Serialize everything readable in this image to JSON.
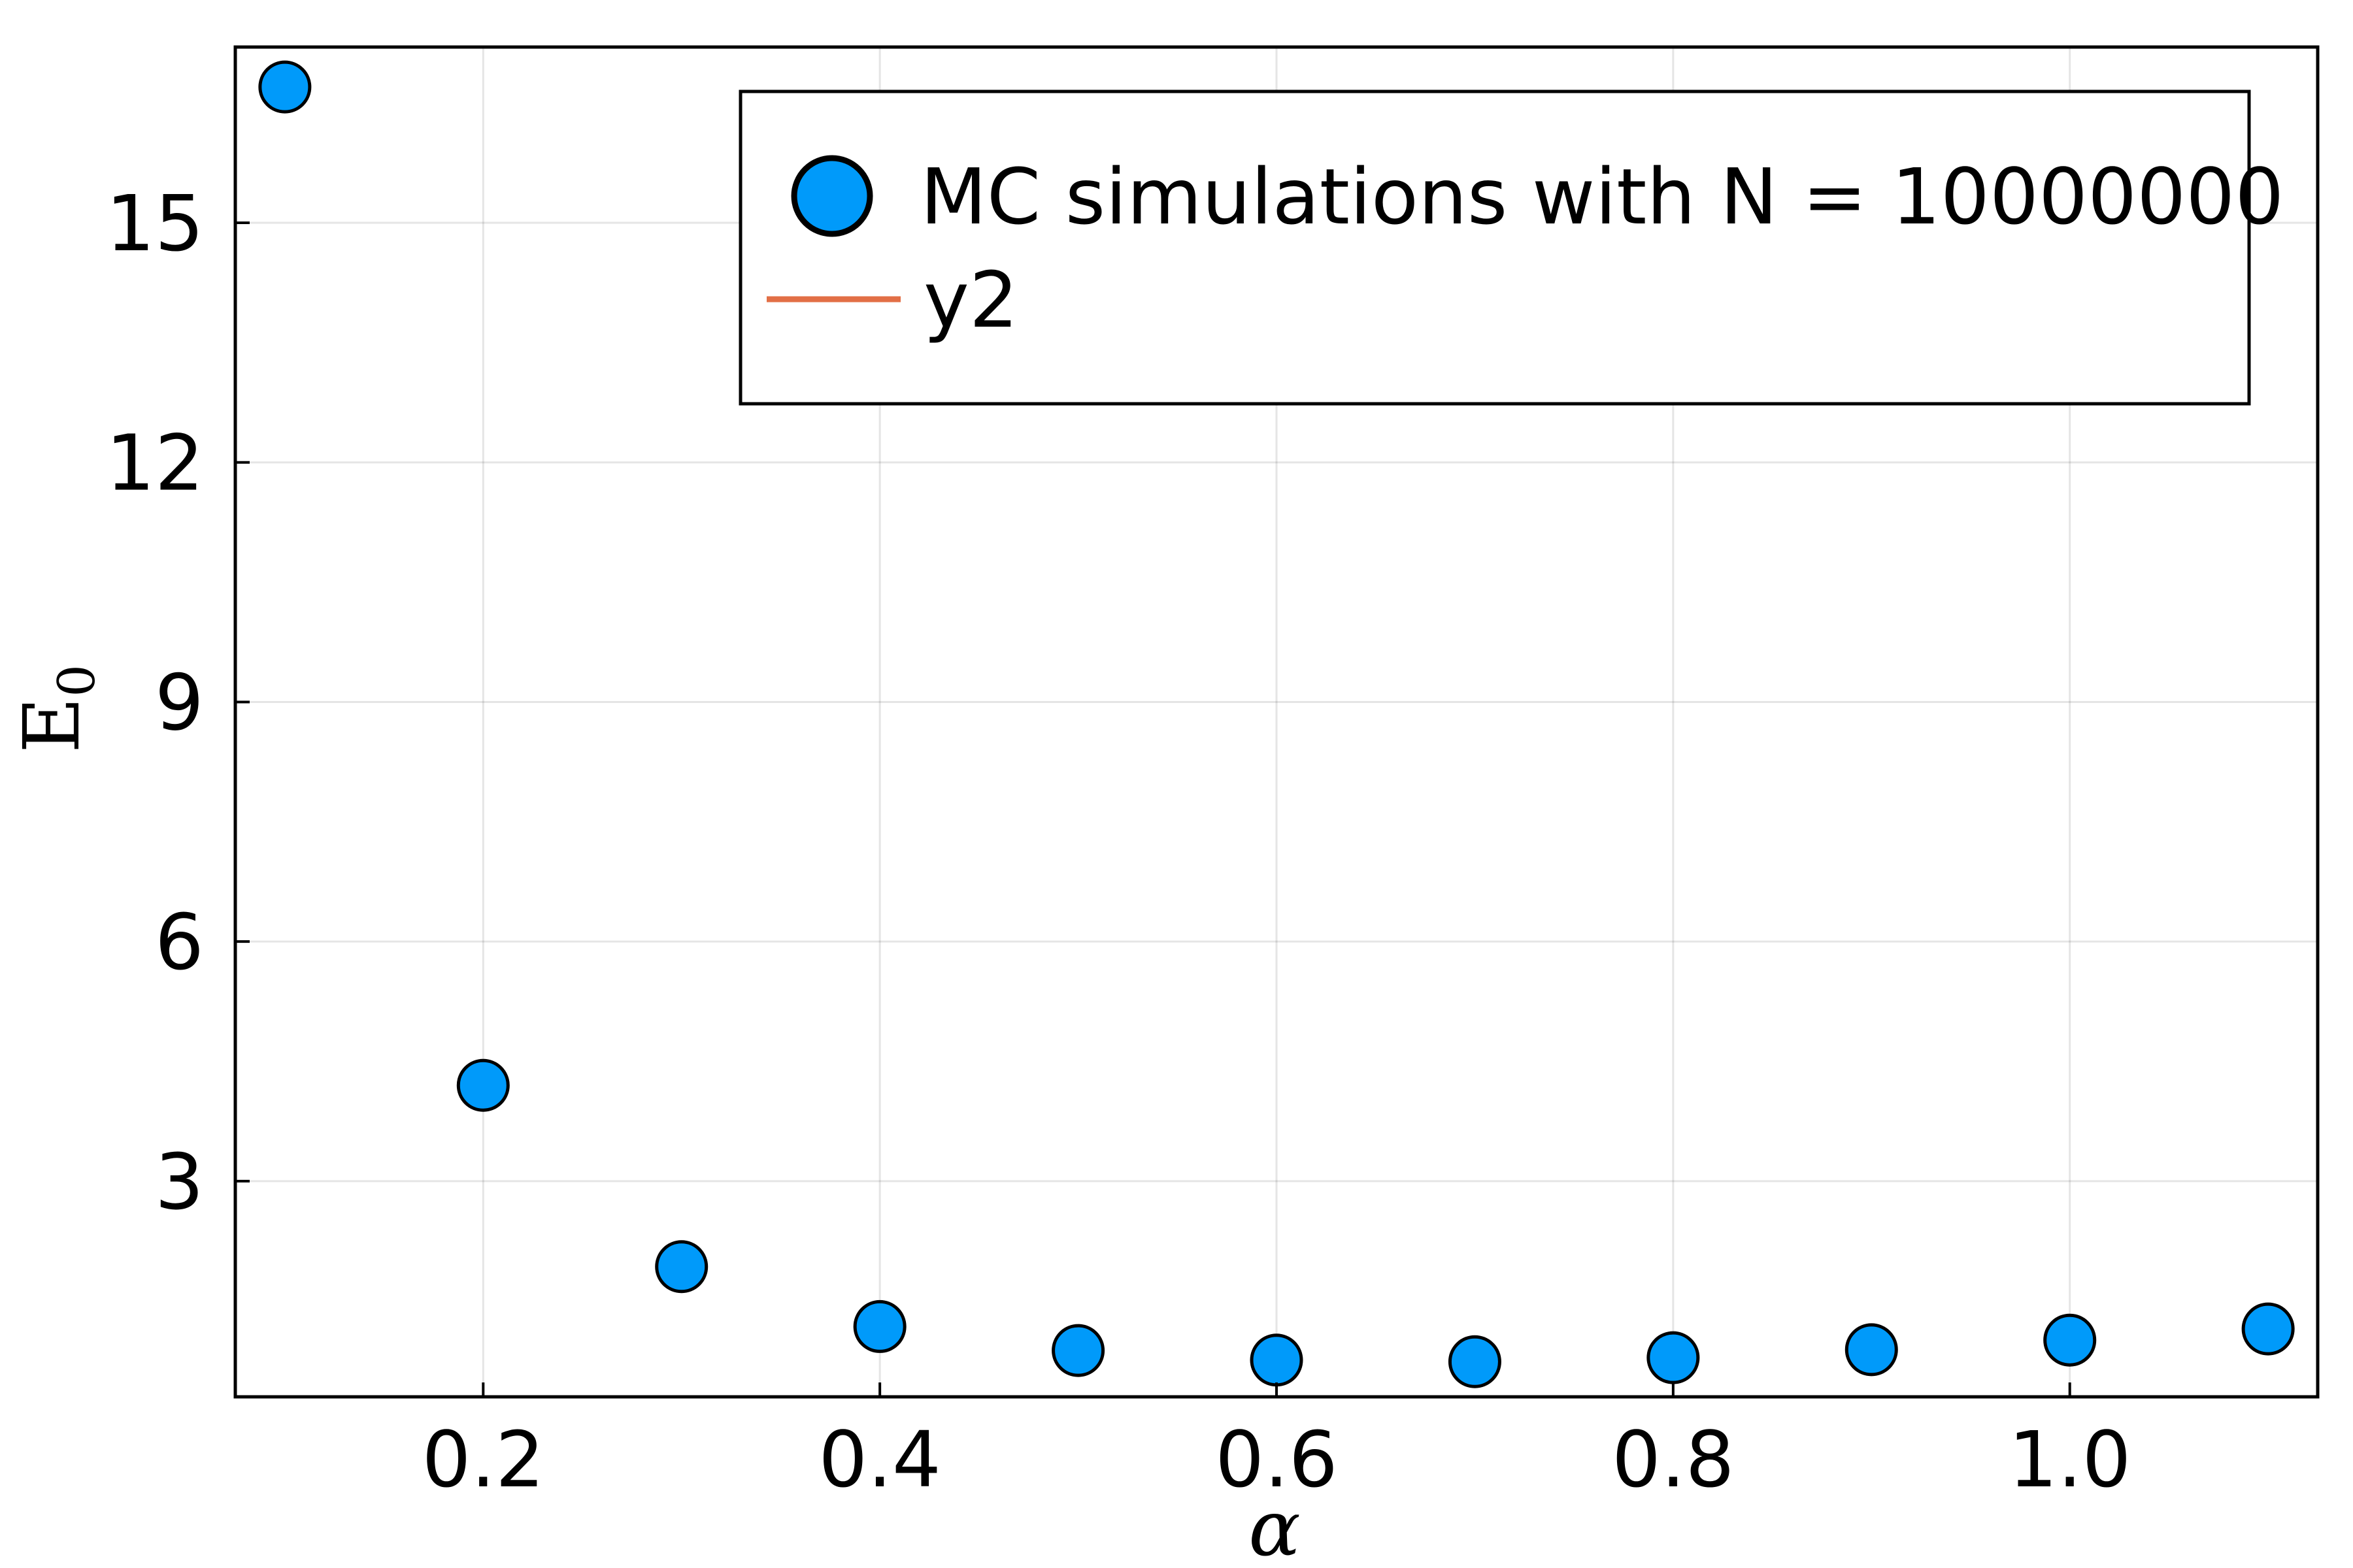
{
  "chart_data": {
    "type": "scatter",
    "xlabel": "α",
    "ylabel": "E",
    "ylabel_subscript": "0",
    "xlim": [
      0.075,
      1.125
    ],
    "ylim": [
      0.3,
      17.2
    ],
    "xticks": [
      0.2,
      0.4,
      0.6,
      0.8,
      1.0
    ],
    "xtick_labels": [
      "0.2",
      "0.4",
      "0.6",
      "0.8",
      "1.0"
    ],
    "yticks": [
      3,
      6,
      9,
      12,
      15
    ],
    "ytick_labels": [
      "3",
      "6",
      "9",
      "12",
      "15"
    ],
    "grid": true,
    "legend_position": "top-right",
    "series": [
      {
        "name": "MC simulations with N = 10000000",
        "kind": "scatter",
        "color": "#009AFA",
        "x": [
          0.1,
          0.2,
          0.3,
          0.4,
          0.5,
          0.6,
          0.7,
          0.8,
          0.9,
          1.0,
          1.1
        ],
        "y": [
          16.7,
          4.2,
          1.93,
          1.18,
          0.88,
          0.76,
          0.74,
          0.79,
          0.89,
          1.01,
          1.15
        ]
      },
      {
        "name": "y2",
        "kind": "line",
        "color": "#E26F46",
        "x": [],
        "y": []
      }
    ]
  }
}
